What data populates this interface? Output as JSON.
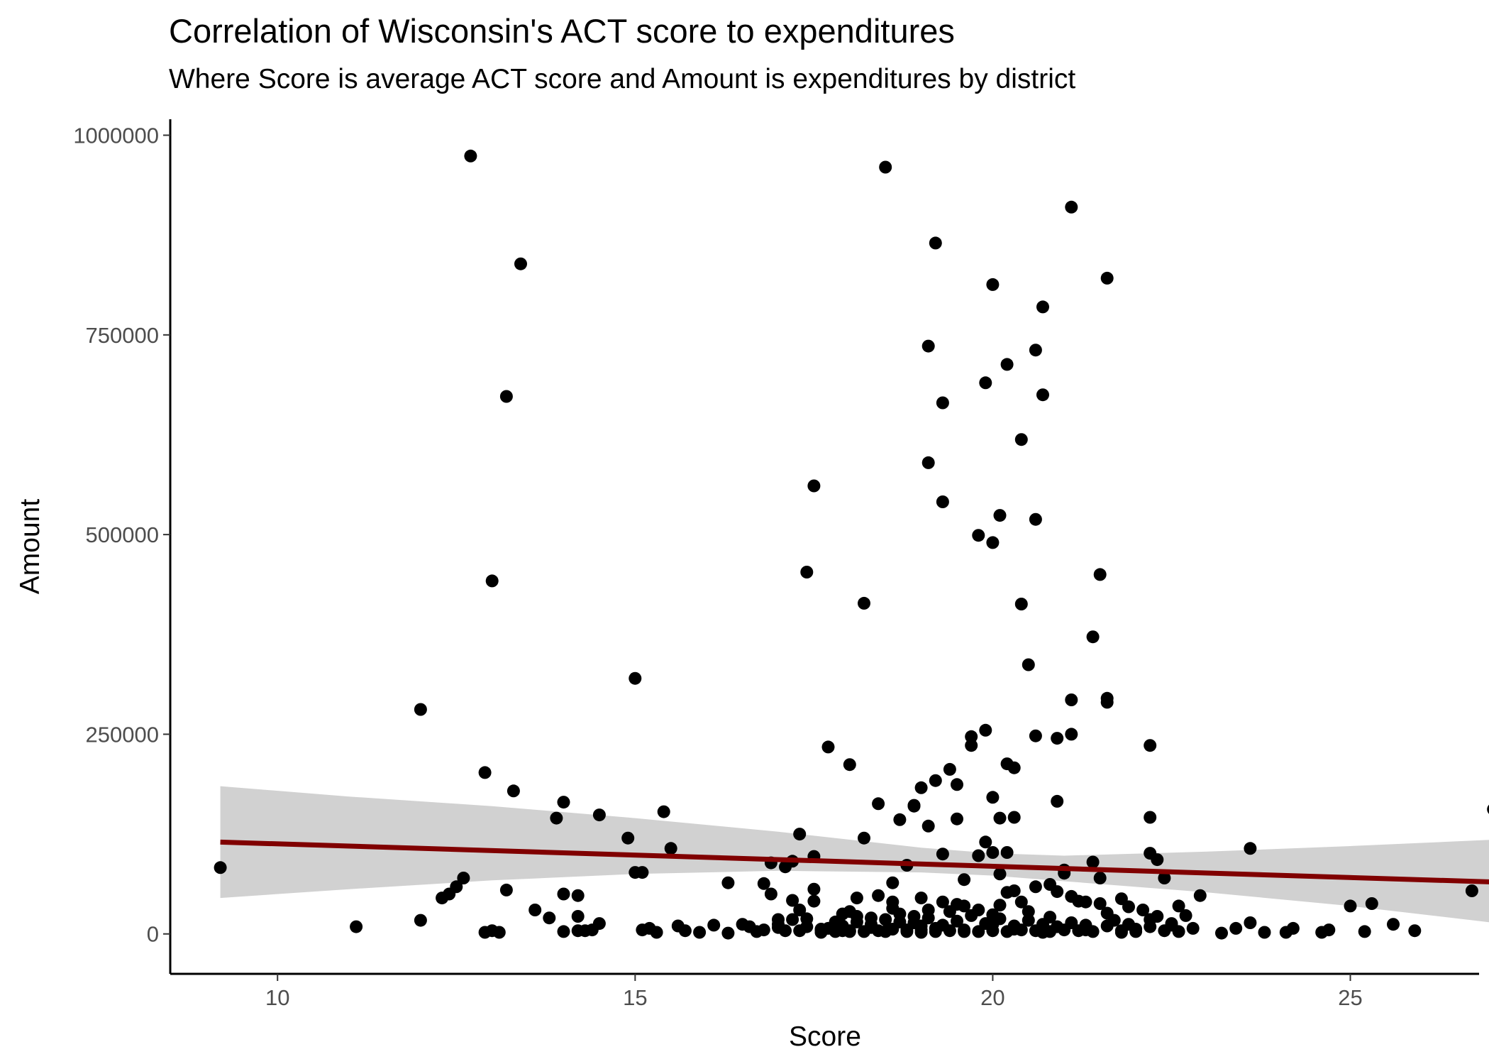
{
  "chart_data": {
    "type": "scatter",
    "title": "Correlation of Wisconsin's ACT score to expenditures",
    "subtitle": "Where Score is average ACT score and Amount is expenditures by district",
    "xlabel": "Score",
    "ylabel": "Amount",
    "xlim": [
      8.5,
      26.8
    ],
    "ylim": [
      -50000,
      1020000
    ],
    "x_ticks": [
      10,
      15,
      20,
      25
    ],
    "x_tick_labels": [
      "10",
      "15",
      "20",
      "25"
    ],
    "y_ticks": [
      0,
      250000,
      500000,
      750000,
      1000000
    ],
    "y_tick_labels": [
      "0",
      "250000",
      "500000",
      "750000",
      "1000000"
    ],
    "grid": false,
    "legend": "none",
    "colors": {
      "points": "#000000",
      "fit_line": "#800000",
      "confidence_band": "#cccccc"
    },
    "points": [
      [
        9.2,
        83000
      ],
      [
        11.1,
        9000
      ],
      [
        12.0,
        281000
      ],
      [
        12.0,
        17000
      ],
      [
        12.3,
        45000
      ],
      [
        12.4,
        50000
      ],
      [
        12.5,
        59000
      ],
      [
        12.6,
        70000
      ],
      [
        12.7,
        974000
      ],
      [
        12.9,
        202000
      ],
      [
        12.9,
        2000
      ],
      [
        13.0,
        442000
      ],
      [
        13.0,
        4000
      ],
      [
        13.1,
        2000
      ],
      [
        13.2,
        673000
      ],
      [
        13.2,
        55000
      ],
      [
        13.3,
        179000
      ],
      [
        13.4,
        839000
      ],
      [
        13.6,
        30000
      ],
      [
        13.8,
        20000
      ],
      [
        13.9,
        145000
      ],
      [
        14.0,
        165000
      ],
      [
        14.0,
        50000
      ],
      [
        14.0,
        3000
      ],
      [
        14.2,
        48000
      ],
      [
        14.2,
        22000
      ],
      [
        14.2,
        4000
      ],
      [
        14.3,
        4000
      ],
      [
        14.4,
        5000
      ],
      [
        14.5,
        149000
      ],
      [
        14.5,
        13000
      ],
      [
        14.9,
        120000
      ],
      [
        15.0,
        320000
      ],
      [
        15.0,
        77000
      ],
      [
        15.1,
        77000
      ],
      [
        15.1,
        5000
      ],
      [
        15.2,
        7000
      ],
      [
        15.3,
        2000
      ],
      [
        15.4,
        153000
      ],
      [
        15.5,
        107000
      ],
      [
        15.6,
        10000
      ],
      [
        15.7,
        4000
      ],
      [
        15.9,
        2000
      ],
      [
        16.1,
        11000
      ],
      [
        16.3,
        64000
      ],
      [
        16.3,
        1000
      ],
      [
        16.5,
        12000
      ],
      [
        16.6,
        9000
      ],
      [
        16.7,
        3000
      ],
      [
        16.8,
        63000
      ],
      [
        16.9,
        89000
      ],
      [
        16.9,
        50000
      ],
      [
        17.0,
        18000
      ],
      [
        17.0,
        12000
      ],
      [
        17.1,
        4000
      ],
      [
        17.1,
        84000
      ],
      [
        17.2,
        42000
      ],
      [
        17.2,
        91000
      ],
      [
        17.3,
        125000
      ],
      [
        17.3,
        30000
      ],
      [
        17.4,
        19000
      ],
      [
        17.4,
        9000
      ],
      [
        17.5,
        41000
      ],
      [
        17.6,
        6000
      ],
      [
        17.6,
        2000
      ],
      [
        17.7,
        7000
      ],
      [
        17.9,
        4000
      ],
      [
        17.4,
        453000
      ],
      [
        17.5,
        561000
      ],
      [
        17.5,
        97000
      ],
      [
        17.5,
        56000
      ],
      [
        17.7,
        234000
      ],
      [
        17.8,
        3000
      ],
      [
        17.9,
        10000
      ],
      [
        17.9,
        25000
      ],
      [
        18.0,
        212000
      ],
      [
        18.0,
        4000
      ],
      [
        18.1,
        15000
      ],
      [
        18.1,
        45000
      ],
      [
        18.2,
        414000
      ],
      [
        18.2,
        120000
      ],
      [
        18.3,
        20000
      ],
      [
        18.3,
        8000
      ],
      [
        18.4,
        163000
      ],
      [
        18.4,
        48000
      ],
      [
        18.5,
        960000
      ],
      [
        18.5,
        3000
      ],
      [
        18.6,
        64000
      ],
      [
        18.6,
        40000
      ],
      [
        18.7,
        143000
      ],
      [
        18.7,
        15000
      ],
      [
        18.8,
        86000
      ],
      [
        18.8,
        5000
      ],
      [
        18.9,
        161000
      ],
      [
        18.9,
        160000
      ],
      [
        18.9,
        22000
      ],
      [
        19.0,
        10000
      ],
      [
        19.0,
        2000
      ],
      [
        19.0,
        183000
      ],
      [
        19.1,
        590000
      ],
      [
        19.1,
        736000
      ],
      [
        19.1,
        135000
      ],
      [
        19.1,
        30000
      ],
      [
        19.2,
        865000
      ],
      [
        19.2,
        192000
      ],
      [
        19.2,
        7000
      ],
      [
        19.3,
        665000
      ],
      [
        19.3,
        541000
      ],
      [
        19.3,
        100000
      ],
      [
        19.3,
        40000
      ],
      [
        19.4,
        206000
      ],
      [
        19.5,
        187000
      ],
      [
        19.5,
        144000
      ],
      [
        19.6,
        35000
      ],
      [
        19.6,
        68000
      ],
      [
        19.6,
        3000
      ],
      [
        19.7,
        236000
      ],
      [
        19.7,
        247000
      ],
      [
        19.8,
        499000
      ],
      [
        19.8,
        98000
      ],
      [
        19.8,
        30000
      ],
      [
        19.9,
        255000
      ],
      [
        19.9,
        115000
      ],
      [
        19.9,
        690000
      ],
      [
        20.0,
        490000
      ],
      [
        20.0,
        171000
      ],
      [
        20.0,
        813000
      ],
      [
        20.0,
        102000
      ],
      [
        20.0,
        12000
      ],
      [
        20.1,
        145000
      ],
      [
        20.1,
        524000
      ],
      [
        20.1,
        75000
      ],
      [
        20.1,
        36000
      ],
      [
        20.2,
        713000
      ],
      [
        20.2,
        213000
      ],
      [
        20.2,
        102000
      ],
      [
        20.2,
        52000
      ],
      [
        20.3,
        208000
      ],
      [
        20.3,
        146000
      ],
      [
        20.3,
        54000
      ],
      [
        20.3,
        6000
      ],
      [
        20.4,
        619000
      ],
      [
        20.4,
        413000
      ],
      [
        20.5,
        337000
      ],
      [
        20.5,
        28000
      ],
      [
        20.6,
        731000
      ],
      [
        20.6,
        519000
      ],
      [
        20.6,
        248000
      ],
      [
        20.6,
        59000
      ],
      [
        20.7,
        785000
      ],
      [
        20.7,
        675000
      ],
      [
        20.7,
        2000
      ],
      [
        20.8,
        62000
      ],
      [
        20.9,
        245000
      ],
      [
        20.9,
        166000
      ],
      [
        20.9,
        53000
      ],
      [
        21.0,
        80000
      ],
      [
        21.0,
        76000
      ],
      [
        21.1,
        910000
      ],
      [
        21.1,
        250000
      ],
      [
        21.1,
        293000
      ],
      [
        21.1,
        47000
      ],
      [
        21.2,
        41000
      ],
      [
        21.3,
        40000
      ],
      [
        21.3,
        5000
      ],
      [
        21.4,
        372000
      ],
      [
        21.4,
        90000
      ],
      [
        21.5,
        70000
      ],
      [
        21.5,
        38000
      ],
      [
        21.5,
        450000
      ],
      [
        21.6,
        290000
      ],
      [
        21.6,
        295000
      ],
      [
        21.6,
        821000
      ],
      [
        21.7,
        17000
      ],
      [
        21.8,
        2000
      ],
      [
        21.9,
        34000
      ],
      [
        22.0,
        6000
      ],
      [
        22.1,
        30000
      ],
      [
        22.2,
        236000
      ],
      [
        22.2,
        146000
      ],
      [
        22.2,
        101000
      ],
      [
        22.3,
        93000
      ],
      [
        22.3,
        22000
      ],
      [
        22.4,
        70000
      ],
      [
        22.5,
        13000
      ],
      [
        22.6,
        35000
      ],
      [
        22.7,
        23000
      ],
      [
        22.8,
        7000
      ],
      [
        22.9,
        48000
      ],
      [
        23.2,
        1000
      ],
      [
        23.4,
        7000
      ],
      [
        23.6,
        14000
      ],
      [
        23.6,
        107000
      ],
      [
        23.8,
        2000
      ],
      [
        24.1,
        2000
      ],
      [
        24.2,
        7000
      ],
      [
        24.6,
        2000
      ],
      [
        24.7,
        5000
      ],
      [
        25.0,
        35000
      ],
      [
        25.2,
        3000
      ],
      [
        25.3,
        38000
      ],
      [
        25.6,
        12000
      ],
      [
        25.9,
        4000
      ],
      [
        26.7,
        54000
      ],
      [
        27.0,
        156000
      ],
      [
        17.3,
        4000
      ],
      [
        17.6,
        5000
      ],
      [
        18.0,
        3000
      ],
      [
        18.2,
        3000
      ],
      [
        18.4,
        4000
      ],
      [
        18.6,
        6000
      ],
      [
        18.8,
        3000
      ],
      [
        19.0,
        5000
      ],
      [
        19.2,
        3000
      ],
      [
        19.4,
        4000
      ],
      [
        19.6,
        5000
      ],
      [
        19.8,
        3000
      ],
      [
        20.0,
        4000
      ],
      [
        20.2,
        3000
      ],
      [
        20.4,
        5000
      ],
      [
        20.6,
        4000
      ],
      [
        20.8,
        3000
      ],
      [
        21.0,
        5000
      ],
      [
        21.2,
        4000
      ],
      [
        21.4,
        3000
      ],
      [
        21.8,
        4000
      ],
      [
        22.0,
        3000
      ],
      [
        22.4,
        4000
      ],
      [
        22.6,
        3000
      ],
      [
        17.8,
        15000
      ],
      [
        18.1,
        22000
      ],
      [
        18.3,
        12000
      ],
      [
        18.5,
        18000
      ],
      [
        18.7,
        25000
      ],
      [
        18.9,
        14000
      ],
      [
        19.1,
        20000
      ],
      [
        19.3,
        11000
      ],
      [
        19.5,
        16000
      ],
      [
        19.7,
        23000
      ],
      [
        19.9,
        13000
      ],
      [
        20.1,
        19000
      ],
      [
        20.3,
        10000
      ],
      [
        20.5,
        17000
      ],
      [
        20.7,
        12000
      ],
      [
        20.9,
        9000
      ],
      [
        21.1,
        14000
      ],
      [
        21.3,
        11000
      ],
      [
        21.6,
        10000
      ],
      [
        21.9,
        12000
      ],
      [
        22.2,
        9000
      ],
      [
        22.5,
        11000
      ],
      [
        18.0,
        28000
      ],
      [
        18.6,
        32000
      ],
      [
        19.4,
        28000
      ],
      [
        20.0,
        24000
      ],
      [
        20.8,
        21000
      ],
      [
        21.6,
        26000
      ],
      [
        22.2,
        18000
      ],
      [
        17.2,
        18000
      ],
      [
        17.0,
        8000
      ],
      [
        16.8,
        5000
      ],
      [
        19.0,
        45000
      ],
      [
        19.5,
        37000
      ],
      [
        20.4,
        40000
      ],
      [
        21.8,
        44000
      ]
    ],
    "fit_line": {
      "x": [
        9.2,
        27.0
      ],
      "y": [
        115000,
        65000
      ]
    },
    "confidence_band": {
      "x": [
        9.2,
        11.0,
        13.0,
        15.0,
        17.0,
        19.0,
        20.0,
        21.0,
        23.0,
        25.0,
        27.0
      ],
      "lower": [
        45000,
        56000,
        67000,
        75000,
        79000,
        77000,
        73000,
        66000,
        52000,
        35000,
        14000
      ],
      "upper": [
        185000,
        172000,
        160000,
        145000,
        128000,
        108000,
        101000,
        98000,
        103000,
        110000,
        118000
      ]
    }
  }
}
